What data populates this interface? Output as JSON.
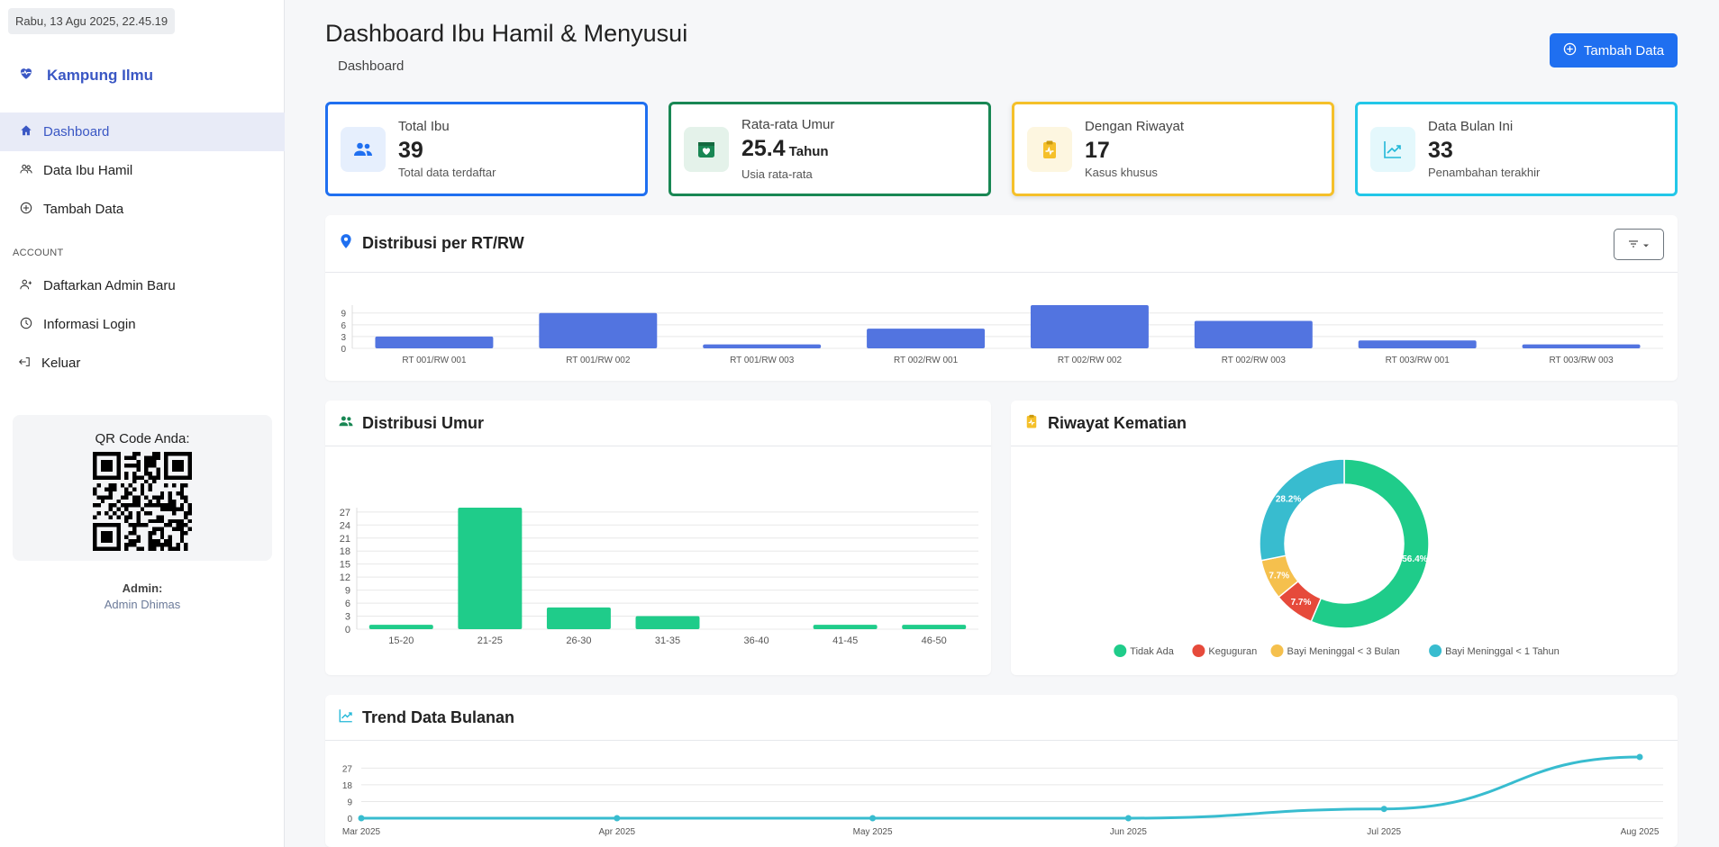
{
  "sidebar": {
    "datetime": "Rabu, 13 Agu 2025, 22.45.19",
    "brand": "Kampung Ilmu",
    "nav": [
      {
        "label": "Dashboard",
        "icon": "home-icon",
        "active": true
      },
      {
        "label": "Data Ibu Hamil",
        "icon": "users-icon"
      },
      {
        "label": "Tambah Data",
        "icon": "plus-circle-icon"
      }
    ],
    "section_label": "ACCOUNT",
    "account": [
      {
        "label": "Daftarkan Admin Baru",
        "icon": "user-add-icon"
      },
      {
        "label": "Informasi Login",
        "icon": "clock-icon"
      },
      {
        "label": "Keluar",
        "icon": "logout-icon"
      }
    ],
    "qr_title": "QR Code Anda:",
    "admin_label": "Admin:",
    "admin_name": "Admin Dhimas"
  },
  "header": {
    "title": "Dashboard Ibu Hamil & Menyusui",
    "breadcrumb": "Dashboard",
    "add_button": "Tambah Data"
  },
  "stats": [
    {
      "label": "Total Ibu",
      "value": "39",
      "unit": "",
      "sub": "Total data terdaftar",
      "color": "#1f6ff0",
      "icon": "users-icon"
    },
    {
      "label": "Rata-rata Umur",
      "value": "25.4",
      "unit": "Tahun",
      "sub": "Usia rata-rata",
      "color": "#198754",
      "icon": "calendar-heart-icon"
    },
    {
      "label": "Dengan Riwayat",
      "value": "17",
      "unit": "",
      "sub": "Kasus khusus",
      "color": "#f5c02a",
      "icon": "clipboard-pulse-icon"
    },
    {
      "label": "Data Bulan Ini",
      "value": "33",
      "unit": "",
      "sub": "Penambahan terakhir",
      "color": "#22c7e8",
      "icon": "trend-up-icon"
    }
  ],
  "cards": {
    "rtrw_title": "Distribusi per RT/RW",
    "umur_title": "Distribusi Umur",
    "kematian_title": "Riwayat Kematian",
    "trend_title": "Trend Data Bulanan"
  },
  "colors": {
    "primary": "#1f6ff0",
    "bar_blue": "#5274e0",
    "bar_green": "#1fcc8a",
    "line_cyan": "#38bccf"
  },
  "chart_data": [
    {
      "id": "rtrw",
      "type": "bar",
      "categories": [
        "RT 001/RW 001",
        "RT 001/RW 002",
        "RT 001/RW 003",
        "RT 002/RW 001",
        "RT 002/RW 002",
        "RT 002/RW 003",
        "RT 003/RW 001",
        "RT 003/RW 003"
      ],
      "values": [
        3,
        9,
        1,
        5,
        11,
        7,
        2,
        1
      ],
      "yticks": [
        0,
        3,
        6,
        9
      ],
      "ylim": [
        0,
        11
      ]
    },
    {
      "id": "umur",
      "type": "bar",
      "categories": [
        "15-20",
        "21-25",
        "26-30",
        "31-35",
        "36-40",
        "41-45",
        "46-50"
      ],
      "values": [
        1,
        28,
        5,
        3,
        0,
        1,
        1
      ],
      "yticks": [
        0,
        3,
        6,
        9,
        12,
        15,
        18,
        21,
        24,
        27
      ],
      "ylim": [
        0,
        28
      ]
    },
    {
      "id": "kematian",
      "type": "pie",
      "labels": [
        "Tidak Ada",
        "Keguguran",
        "Bayi Meninggal < 3 Bulan",
        "Bayi Meninggal < 1 Tahun"
      ],
      "values": [
        56.4,
        7.7,
        7.7,
        28.2
      ],
      "value_labels": [
        "56.4%",
        "7.7%",
        "7.7%",
        "28.2%"
      ],
      "colors": [
        "#1fcc8a",
        "#e64a3b",
        "#f5c04d",
        "#38bccf"
      ]
    },
    {
      "id": "trend",
      "type": "line",
      "x": [
        "Mar 2025",
        "Apr 2025",
        "May 2025",
        "Jun 2025",
        "Jul 2025",
        "Aug 2025"
      ],
      "values": [
        0,
        0,
        0,
        0,
        5,
        33
      ],
      "yticks": [
        0,
        9,
        18,
        27
      ],
      "ylim": [
        0,
        33
      ]
    }
  ]
}
